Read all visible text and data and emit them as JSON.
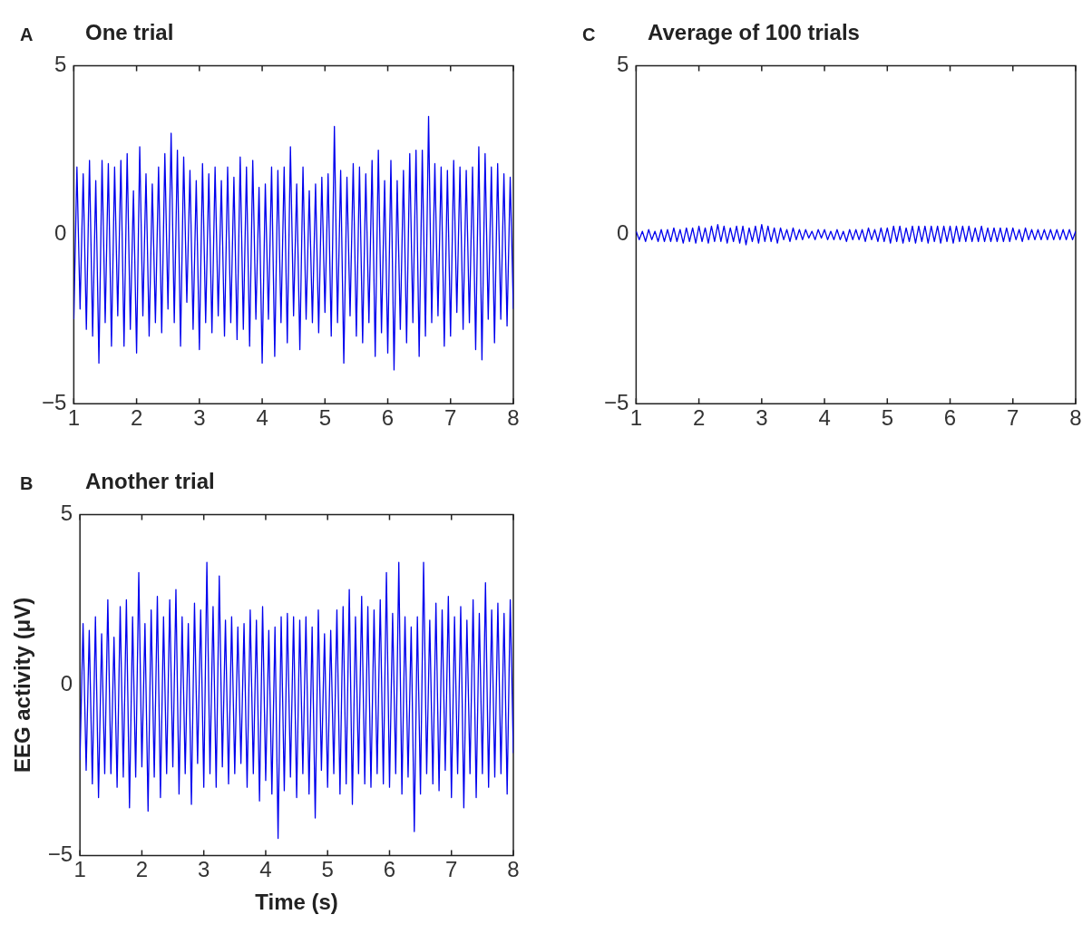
{
  "chart_data": [
    {
      "type": "line",
      "title": "One trial",
      "annotations": [
        "A"
      ],
      "xlim": [
        1,
        8
      ],
      "xticks": [
        1,
        2,
        3,
        4,
        5,
        6,
        7,
        8
      ],
      "ylim": [
        -5,
        5
      ],
      "yticks": [
        -5,
        0,
        5
      ],
      "grid": false,
      "x": [
        1,
        1.05,
        1.1,
        1.15,
        1.2,
        1.25,
        1.3,
        1.35,
        1.4,
        1.45,
        1.5,
        1.55,
        1.6,
        1.65,
        1.7,
        1.75,
        1.8,
        1.85,
        1.9,
        1.95,
        2,
        2.05,
        2.1,
        2.15,
        2.2,
        2.25,
        2.3,
        2.35,
        2.4,
        2.45,
        2.5,
        2.55,
        2.6,
        2.65,
        2.7,
        2.75,
        2.8,
        2.85,
        2.9,
        2.95,
        3,
        3.05,
        3.1,
        3.15,
        3.2,
        3.25,
        3.3,
        3.35,
        3.4,
        3.45,
        3.5,
        3.55,
        3.6,
        3.65,
        3.7,
        3.75,
        3.8,
        3.85,
        3.9,
        3.95,
        4,
        4.05,
        4.1,
        4.15,
        4.2,
        4.25,
        4.3,
        4.35,
        4.4,
        4.45,
        4.5,
        4.55,
        4.6,
        4.65,
        4.7,
        4.75,
        4.8,
        4.85,
        4.9,
        4.95,
        5,
        5.05,
        5.1,
        5.15,
        5.2,
        5.25,
        5.3,
        5.35,
        5.4,
        5.45,
        5.5,
        5.55,
        5.6,
        5.65,
        5.7,
        5.75,
        5.8,
        5.85,
        5.9,
        5.95,
        6,
        6.05,
        6.1,
        6.15,
        6.2,
        6.25,
        6.3,
        6.35,
        6.4,
        6.45,
        6.5,
        6.55,
        6.6,
        6.65,
        6.7,
        6.75,
        6.8,
        6.85,
        6.9,
        6.95,
        7,
        7.05,
        7.1,
        7.15,
        7.2,
        7.25,
        7.3,
        7.35,
        7.4,
        7.45,
        7.5,
        7.55,
        7.6,
        7.65,
        7.7,
        7.75,
        7.8,
        7.85,
        7.9,
        7.95,
        8
      ],
      "series": [
        {
          "color": "#0000ee",
          "values": [
            -2.5,
            2.0,
            -2.2,
            1.8,
            -2.8,
            2.2,
            -3.0,
            1.6,
            -3.8,
            2.2,
            -2.6,
            2.1,
            -3.3,
            2.0,
            -2.4,
            2.2,
            -3.3,
            2.4,
            -2.8,
            1.3,
            -3.5,
            2.6,
            -2.4,
            1.8,
            -3.0,
            1.5,
            -2.6,
            2.0,
            -2.9,
            2.4,
            -2.2,
            3.0,
            -2.6,
            2.5,
            -3.3,
            2.3,
            -2.0,
            1.9,
            -2.8,
            1.6,
            -3.4,
            2.1,
            -2.6,
            1.8,
            -2.9,
            2.0,
            -2.4,
            1.6,
            -3.0,
            2.0,
            -2.6,
            1.7,
            -3.1,
            2.3,
            -2.8,
            2.0,
            -3.3,
            2.2,
            -2.5,
            1.4,
            -3.8,
            1.5,
            -2.5,
            2.0,
            -3.6,
            1.9,
            -2.6,
            2.0,
            -3.2,
            2.6,
            -2.4,
            1.5,
            -3.4,
            2.0,
            -2.5,
            1.3,
            -2.6,
            1.5,
            -2.9,
            1.7,
            -2.3,
            1.8,
            -3.0,
            3.2,
            -2.6,
            1.9,
            -3.8,
            1.7,
            -2.4,
            2.1,
            -3.0,
            2.0,
            -3.2,
            1.8,
            -2.6,
            2.2,
            -3.6,
            2.5,
            -2.9,
            1.6,
            -3.5,
            2.2,
            -4.0,
            1.6,
            -2.8,
            1.9,
            -3.2,
            2.4,
            -2.6,
            2.5,
            -3.6,
            2.5,
            -3.0,
            3.5,
            -2.6,
            2.1,
            -2.4,
            2.0,
            -3.3,
            1.9,
            -3.0,
            2.2,
            -2.3,
            2.0,
            -2.8,
            1.9,
            -2.6,
            2.0,
            -3.4,
            2.6,
            -3.7,
            2.4,
            -2.5,
            2.0,
            -3.2,
            2.1,
            -2.5,
            1.8,
            -2.7,
            1.7,
            -2.2
          ]
        }
      ]
    },
    {
      "type": "line",
      "title": "Another trial",
      "annotations": [
        "B"
      ],
      "xlabel": "Time (s)",
      "ylabel": "EEG activity (μV)",
      "xlim": [
        1,
        8
      ],
      "xticks": [
        1,
        2,
        3,
        4,
        5,
        6,
        7,
        8
      ],
      "ylim": [
        -5,
        5
      ],
      "yticks": [
        -5,
        0,
        5
      ],
      "grid": false,
      "x": [
        1,
        1.05,
        1.1,
        1.15,
        1.2,
        1.25,
        1.3,
        1.35,
        1.4,
        1.45,
        1.5,
        1.55,
        1.6,
        1.65,
        1.7,
        1.75,
        1.8,
        1.85,
        1.9,
        1.95,
        2,
        2.05,
        2.1,
        2.15,
        2.2,
        2.25,
        2.3,
        2.35,
        2.4,
        2.45,
        2.5,
        2.55,
        2.6,
        2.65,
        2.7,
        2.75,
        2.8,
        2.85,
        2.9,
        2.95,
        3,
        3.05,
        3.1,
        3.15,
        3.2,
        3.25,
        3.3,
        3.35,
        3.4,
        3.45,
        3.5,
        3.55,
        3.6,
        3.65,
        3.7,
        3.75,
        3.8,
        3.85,
        3.9,
        3.95,
        4,
        4.05,
        4.1,
        4.15,
        4.2,
        4.25,
        4.3,
        4.35,
        4.4,
        4.45,
        4.5,
        4.55,
        4.6,
        4.65,
        4.7,
        4.75,
        4.8,
        4.85,
        4.9,
        4.95,
        5,
        5.05,
        5.1,
        5.15,
        5.2,
        5.25,
        5.3,
        5.35,
        5.4,
        5.45,
        5.5,
        5.55,
        5.6,
        5.65,
        5.7,
        5.75,
        5.8,
        5.85,
        5.9,
        5.95,
        6,
        6.05,
        6.1,
        6.15,
        6.2,
        6.25,
        6.3,
        6.35,
        6.4,
        6.45,
        6.5,
        6.55,
        6.6,
        6.65,
        6.7,
        6.75,
        6.8,
        6.85,
        6.9,
        6.95,
        7,
        7.05,
        7.1,
        7.15,
        7.2,
        7.25,
        7.3,
        7.35,
        7.4,
        7.45,
        7.5,
        7.55,
        7.6,
        7.65,
        7.7,
        7.75,
        7.8,
        7.85,
        7.9,
        7.95,
        8
      ],
      "series": [
        {
          "color": "#0000ee",
          "values": [
            -2.2,
            1.8,
            -2.5,
            1.6,
            -2.9,
            2.0,
            -3.3,
            1.5,
            -2.6,
            2.5,
            -2.6,
            1.4,
            -3.0,
            2.3,
            -2.7,
            2.5,
            -3.6,
            2.0,
            -2.7,
            3.3,
            -2.4,
            1.8,
            -3.7,
            2.2,
            -2.7,
            2.6,
            -3.3,
            2.0,
            -2.6,
            2.5,
            -2.4,
            2.8,
            -3.2,
            2.0,
            -2.6,
            1.8,
            -3.5,
            2.4,
            -2.3,
            2.2,
            -3.0,
            3.6,
            -2.6,
            2.3,
            -3.0,
            3.2,
            -2.4,
            1.9,
            -2.9,
            2.0,
            -2.6,
            1.7,
            -2.3,
            1.8,
            -3.0,
            2.2,
            -2.6,
            1.9,
            -3.4,
            2.3,
            -2.8,
            1.6,
            -3.2,
            1.7,
            -4.5,
            2.0,
            -3.1,
            2.1,
            -2.7,
            2.0,
            -3.3,
            1.9,
            -2.6,
            2.0,
            -3.2,
            1.7,
            -3.9,
            2.2,
            -2.5,
            1.5,
            -3.0,
            1.6,
            -2.6,
            2.2,
            -3.2,
            2.3,
            -2.9,
            2.8,
            -3.5,
            2.0,
            -2.6,
            2.6,
            -2.9,
            2.3,
            -3.0,
            2.2,
            -2.6,
            2.5,
            -2.9,
            3.3,
            -3.0,
            2.1,
            -2.6,
            3.6,
            -3.2,
            2.0,
            -2.7,
            1.7,
            -4.3,
            2.0,
            -3.2,
            3.6,
            -2.6,
            1.9,
            -2.9,
            2.4,
            -3.1,
            2.2,
            -2.5,
            2.6,
            -3.3,
            2.0,
            -2.6,
            2.3,
            -3.6,
            1.9,
            -2.6,
            2.5,
            -3.3,
            2.1,
            -2.6,
            3.0,
            -3.0,
            2.2,
            -2.7,
            2.4,
            -2.6,
            2.1,
            -3.2,
            2.5,
            -2.0
          ]
        }
      ]
    },
    {
      "type": "line",
      "title": "Average of 100 trials",
      "annotations": [
        "C"
      ],
      "xlim": [
        1,
        8
      ],
      "xticks": [
        1,
        2,
        3,
        4,
        5,
        6,
        7,
        8
      ],
      "ylim": [
        -5,
        5
      ],
      "yticks": [
        -5,
        0,
        5
      ],
      "grid": false,
      "x": [
        1,
        1.05,
        1.1,
        1.15,
        1.2,
        1.25,
        1.3,
        1.35,
        1.4,
        1.45,
        1.5,
        1.55,
        1.6,
        1.65,
        1.7,
        1.75,
        1.8,
        1.85,
        1.9,
        1.95,
        2,
        2.05,
        2.1,
        2.15,
        2.2,
        2.25,
        2.3,
        2.35,
        2.4,
        2.45,
        2.5,
        2.55,
        2.6,
        2.65,
        2.7,
        2.75,
        2.8,
        2.85,
        2.9,
        2.95,
        3,
        3.05,
        3.1,
        3.15,
        3.2,
        3.25,
        3.3,
        3.35,
        3.4,
        3.45,
        3.5,
        3.55,
        3.6,
        3.65,
        3.7,
        3.75,
        3.8,
        3.85,
        3.9,
        3.95,
        4,
        4.05,
        4.1,
        4.15,
        4.2,
        4.25,
        4.3,
        4.35,
        4.4,
        4.45,
        4.5,
        4.55,
        4.6,
        4.65,
        4.7,
        4.75,
        4.8,
        4.85,
        4.9,
        4.95,
        5,
        5.05,
        5.1,
        5.15,
        5.2,
        5.25,
        5.3,
        5.35,
        5.4,
        5.45,
        5.5,
        5.55,
        5.6,
        5.65,
        5.7,
        5.75,
        5.8,
        5.85,
        5.9,
        5.95,
        6,
        6.05,
        6.1,
        6.15,
        6.2,
        6.25,
        6.3,
        6.35,
        6.4,
        6.45,
        6.5,
        6.55,
        6.6,
        6.65,
        6.7,
        6.75,
        6.8,
        6.85,
        6.9,
        6.95,
        7,
        7.05,
        7.1,
        7.15,
        7.2,
        7.25,
        7.3,
        7.35,
        7.4,
        7.45,
        7.5,
        7.55,
        7.6,
        7.65,
        7.7,
        7.75,
        7.8,
        7.85,
        7.9,
        7.95,
        8
      ],
      "series": [
        {
          "color": "#0000ee",
          "values": [
            0.1,
            -0.15,
            0.1,
            -0.2,
            0.15,
            -0.15,
            0.1,
            -0.2,
            0.15,
            -0.2,
            0.15,
            -0.2,
            0.2,
            -0.2,
            0.15,
            -0.25,
            0.2,
            -0.2,
            0.2,
            -0.25,
            0.25,
            -0.2,
            0.2,
            -0.25,
            0.25,
            -0.2,
            0.3,
            -0.2,
            0.25,
            -0.25,
            0.2,
            -0.2,
            0.25,
            -0.25,
            0.25,
            -0.3,
            0.2,
            -0.2,
            0.25,
            -0.25,
            0.3,
            -0.2,
            0.25,
            -0.2,
            0.2,
            -0.25,
            0.2,
            -0.15,
            0.15,
            -0.2,
            0.2,
            -0.15,
            0.15,
            -0.15,
            0.15,
            -0.1,
            0.1,
            -0.15,
            0.15,
            -0.1,
            0.15,
            -0.15,
            0.1,
            -0.15,
            0.15,
            -0.15,
            0.1,
            -0.2,
            0.15,
            -0.15,
            0.15,
            -0.15,
            0.15,
            -0.2,
            0.2,
            -0.15,
            0.15,
            -0.2,
            0.2,
            -0.2,
            0.2,
            -0.25,
            0.25,
            -0.2,
            0.25,
            -0.25,
            0.2,
            -0.2,
            0.25,
            -0.25,
            0.25,
            -0.2,
            0.25,
            -0.25,
            0.25,
            -0.2,
            0.25,
            -0.25,
            0.25,
            -0.2,
            0.25,
            -0.25,
            0.25,
            -0.2,
            0.25,
            -0.2,
            0.25,
            -0.2,
            0.2,
            -0.2,
            0.25,
            -0.2,
            0.2,
            -0.2,
            0.2,
            -0.2,
            0.2,
            -0.2,
            0.2,
            -0.2,
            0.2,
            -0.15,
            0.15,
            -0.2,
            0.2,
            -0.15,
            0.15,
            -0.15,
            0.15,
            -0.15,
            0.15,
            -0.15,
            0.15,
            -0.15,
            0.15,
            -0.15,
            0.15,
            -0.15,
            0.15,
            -0.15,
            0.1
          ]
        }
      ]
    }
  ]
}
